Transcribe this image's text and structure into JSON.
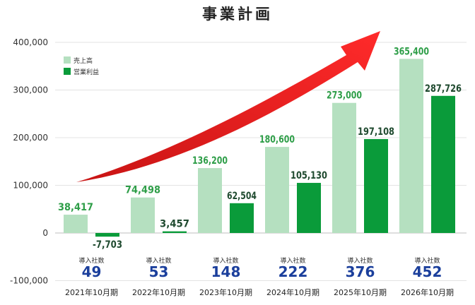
{
  "page": {
    "title": "事業計画"
  },
  "chart_data": {
    "type": "bar",
    "title": "事業計画",
    "xlabel": "",
    "ylabel": "",
    "ylim": [
      -100000,
      400000
    ],
    "yticks": [
      -100000,
      0,
      100000,
      200000,
      300000,
      400000
    ],
    "ytick_labels": [
      "-100,000",
      "0",
      "100,000",
      "200,000",
      "300,000",
      "400,000"
    ],
    "grid": true,
    "legend_position": "top-left",
    "categories": [
      "2021年10月期",
      "2022年10月期",
      "2023年10月期",
      "2024年10月期",
      "2025年10月期",
      "2026年10月期"
    ],
    "series": [
      {
        "name": "売上高",
        "color": "#b5e0c0",
        "label_color": "#2e9e48",
        "values": [
          38417,
          74498,
          136200,
          180600,
          273000,
          365400
        ],
        "value_labels": [
          "38,417",
          "74,498",
          "136,200",
          "180,600",
          "273,000",
          "365,400"
        ]
      },
      {
        "name": "営業利益",
        "color": "#0a9b3a",
        "label_color": "#1f4a2f",
        "values": [
          -7703,
          3457,
          62504,
          105130,
          197108,
          287726
        ],
        "value_labels": [
          "-7,703",
          "3,457",
          "62,504",
          "105,130",
          "197,108",
          "287,726"
        ]
      }
    ],
    "annotations": {
      "client_label": "導入社数",
      "client_counts": [
        "49",
        "53",
        "148",
        "222",
        "376",
        "452"
      ],
      "client_count_color": "#1b3f9c",
      "arrow": "red upward growth arrow"
    }
  }
}
